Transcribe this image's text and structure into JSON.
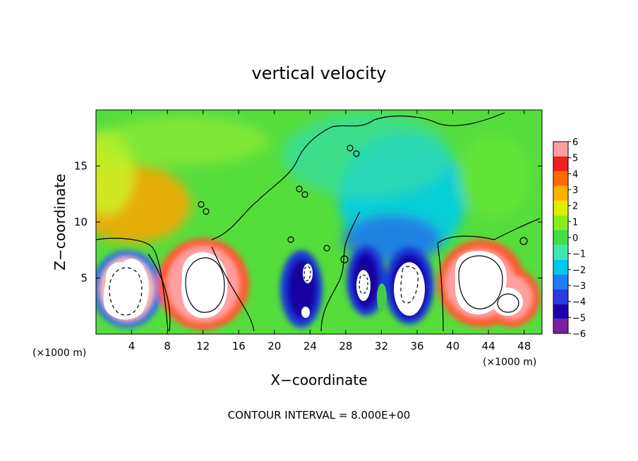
{
  "chart_data": {
    "type": "heatmap",
    "title": "vertical velocity",
    "xlabel": "X−coordinate",
    "ylabel": "Z−coordinate",
    "x_unit_label_left": "(×1000 m)",
    "x_unit_label_right": "(×1000 m)",
    "footer": "CONTOUR INTERVAL = 8.000E+00",
    "xlim": [
      0,
      50
    ],
    "ylim": [
      0,
      20
    ],
    "x_ticks": [
      4,
      8,
      12,
      16,
      20,
      24,
      28,
      32,
      36,
      40,
      44,
      48
    ],
    "y_ticks": [
      5,
      10,
      15
    ],
    "colorbar": {
      "ticks": [
        6,
        5,
        4,
        3,
        2,
        1,
        0,
        -1,
        -2,
        -3,
        -4,
        -5,
        -6
      ],
      "tick_labels": [
        "6",
        "5",
        "4",
        "3",
        "2",
        "1",
        "0",
        "−1",
        "−2",
        "−3",
        "−4",
        "−5",
        "−6"
      ],
      "range": [
        -6,
        6
      ],
      "colors": [
        "#7a1fa2",
        "#1a00a8",
        "#2a3ae0",
        "#1e7ff0",
        "#00c8f0",
        "#40e8b0",
        "#44dd44",
        "#88ee22",
        "#ddee00",
        "#ffb000",
        "#ff6a00",
        "#ee2020",
        "#ffa0a0"
      ]
    },
    "grid": false,
    "updrafts": [
      {
        "x": 4.5,
        "z": 4.0,
        "peak": 8,
        "region": "saturated_white"
      },
      {
        "x": 11.5,
        "z": 4.2,
        "peak": 8,
        "region": "saturated_white"
      },
      {
        "x": 42.5,
        "z": 4.5,
        "peak": 8,
        "region": "saturated_white"
      },
      {
        "x": 46.5,
        "z": 3.2,
        "peak": 6,
        "region": "saturated_white"
      }
    ],
    "downdrafts": [
      {
        "x": 23.5,
        "z": 4.0,
        "peak": -6
      },
      {
        "x": 30.0,
        "z": 4.5,
        "peak": -6
      },
      {
        "x": 35.0,
        "z": 4.5,
        "peak": -6
      }
    ],
    "contour_interval": 8.0
  }
}
